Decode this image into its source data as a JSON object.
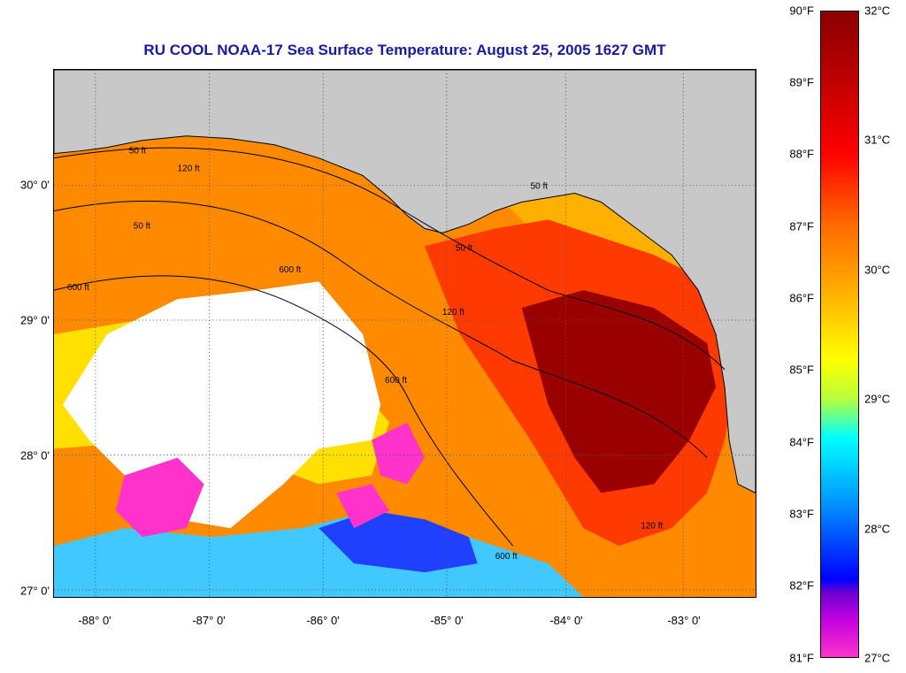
{
  "title": "RU COOL  NOAA-17  Sea Surface Temperature:  August 25, 2005 1627 GMT",
  "lat_labels": [
    "30° 0'",
    "29° 0'",
    "28° 0'",
    "27° 0'"
  ],
  "lon_labels": [
    "-88° 0'",
    "-87° 0'",
    "-86° 0'",
    "-85° 0'",
    "-84° 0'",
    "-83° 0'"
  ],
  "colorbar": {
    "fahrenheit": [
      "90°F",
      "89°F",
      "88°F",
      "87°F",
      "86°F",
      "85°F",
      "84°F",
      "83°F",
      "82°F",
      "81°F"
    ],
    "celsius": [
      "32°C",
      "31°C",
      "30°C",
      "29°C",
      "28°C",
      "27°C"
    ]
  },
  "contour_labels": [
    "50 ft",
    "120 ft",
    "600 ft",
    "600 ft",
    "600 ft",
    "50 ft",
    "50 ft",
    "120 ft",
    "600 ft",
    "120 ft",
    "50 ft"
  ],
  "colors": {
    "land": "#c8c8c8",
    "title": "#1a1aa0",
    "hot": "#8b0000",
    "warm": "#ff6a00",
    "mild": "#ffa500",
    "cool": "#ffff00",
    "cold": "#00c8ff",
    "coldest": "#ff33cc"
  }
}
